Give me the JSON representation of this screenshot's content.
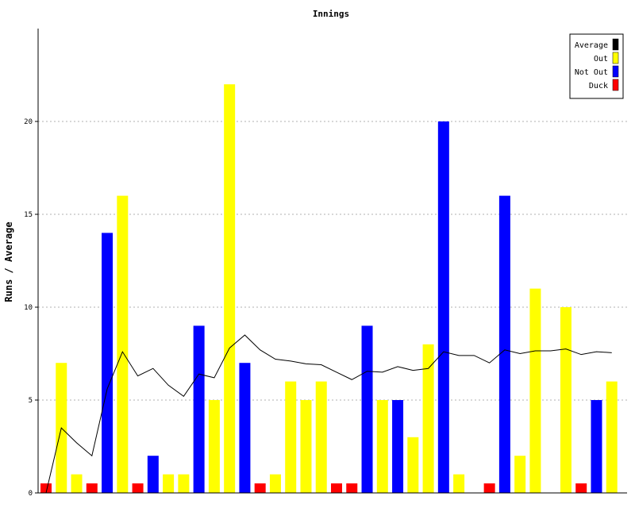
{
  "chart_data": {
    "type": "bar",
    "title": "Innings",
    "ylabel": "Runs / Average",
    "xlabel": "",
    "ylim": [
      0,
      25
    ],
    "yticks": [
      0,
      5,
      10,
      15,
      20
    ],
    "ytick_labels": [
      "0",
      "5",
      "10",
      "15",
      "20"
    ],
    "grid": "horizontal dotted",
    "legend_position": "top-right",
    "legend": [
      {
        "label": "Average",
        "color": "#000000"
      },
      {
        "label": "Out",
        "color": "#ffff00"
      },
      {
        "label": "Not Out",
        "color": "#0000ff"
      },
      {
        "label": "Duck",
        "color": "#ff0000"
      }
    ],
    "innings": [
      {
        "runs": 0,
        "status": "duck"
      },
      {
        "runs": 7,
        "status": "out"
      },
      {
        "runs": 1,
        "status": "out"
      },
      {
        "runs": 0,
        "status": "duck"
      },
      {
        "runs": 14,
        "status": "not_out"
      },
      {
        "runs": 16,
        "status": "out"
      },
      {
        "runs": 0,
        "status": "duck"
      },
      {
        "runs": 2,
        "status": "not_out"
      },
      {
        "runs": 1,
        "status": "out"
      },
      {
        "runs": 1,
        "status": "out"
      },
      {
        "runs": 9,
        "status": "not_out"
      },
      {
        "runs": 5,
        "status": "out"
      },
      {
        "runs": 22,
        "status": "out"
      },
      {
        "runs": 7,
        "status": "not_out"
      },
      {
        "runs": 0,
        "status": "duck"
      },
      {
        "runs": 1,
        "status": "out"
      },
      {
        "runs": 6,
        "status": "out"
      },
      {
        "runs": 5,
        "status": "out"
      },
      {
        "runs": 6,
        "status": "out"
      },
      {
        "runs": 0,
        "status": "duck"
      },
      {
        "runs": 0,
        "status": "duck"
      },
      {
        "runs": 9,
        "status": "not_out"
      },
      {
        "runs": 5,
        "status": "out"
      },
      {
        "runs": 5,
        "status": "not_out"
      },
      {
        "runs": 3,
        "status": "out"
      },
      {
        "runs": 8,
        "status": "out"
      },
      {
        "runs": 20,
        "status": "not_out"
      },
      {
        "runs": 1,
        "status": "out"
      },
      {
        "runs": 0,
        "status": "none"
      },
      {
        "runs": 0,
        "status": "duck"
      },
      {
        "runs": 16,
        "status": "not_out"
      },
      {
        "runs": 2,
        "status": "out"
      },
      {
        "runs": 11,
        "status": "out"
      },
      {
        "runs": 0,
        "status": "none"
      },
      {
        "runs": 10,
        "status": "out"
      },
      {
        "runs": 0,
        "status": "duck"
      },
      {
        "runs": 5,
        "status": "not_out"
      },
      {
        "runs": 6,
        "status": "out"
      }
    ],
    "average": [
      0,
      3.5,
      2.7,
      2.0,
      5.6,
      7.6,
      6.3,
      6.7,
      5.8,
      5.2,
      6.4,
      6.2,
      7.8,
      8.5,
      7.7,
      7.2,
      7.1,
      6.95,
      6.9,
      6.5,
      6.1,
      6.55,
      6.5,
      6.8,
      6.6,
      6.7,
      7.6,
      7.4,
      7.4,
      7.0,
      7.7,
      7.5,
      7.65,
      7.65,
      7.75,
      7.45,
      7.6,
      7.55
    ]
  }
}
